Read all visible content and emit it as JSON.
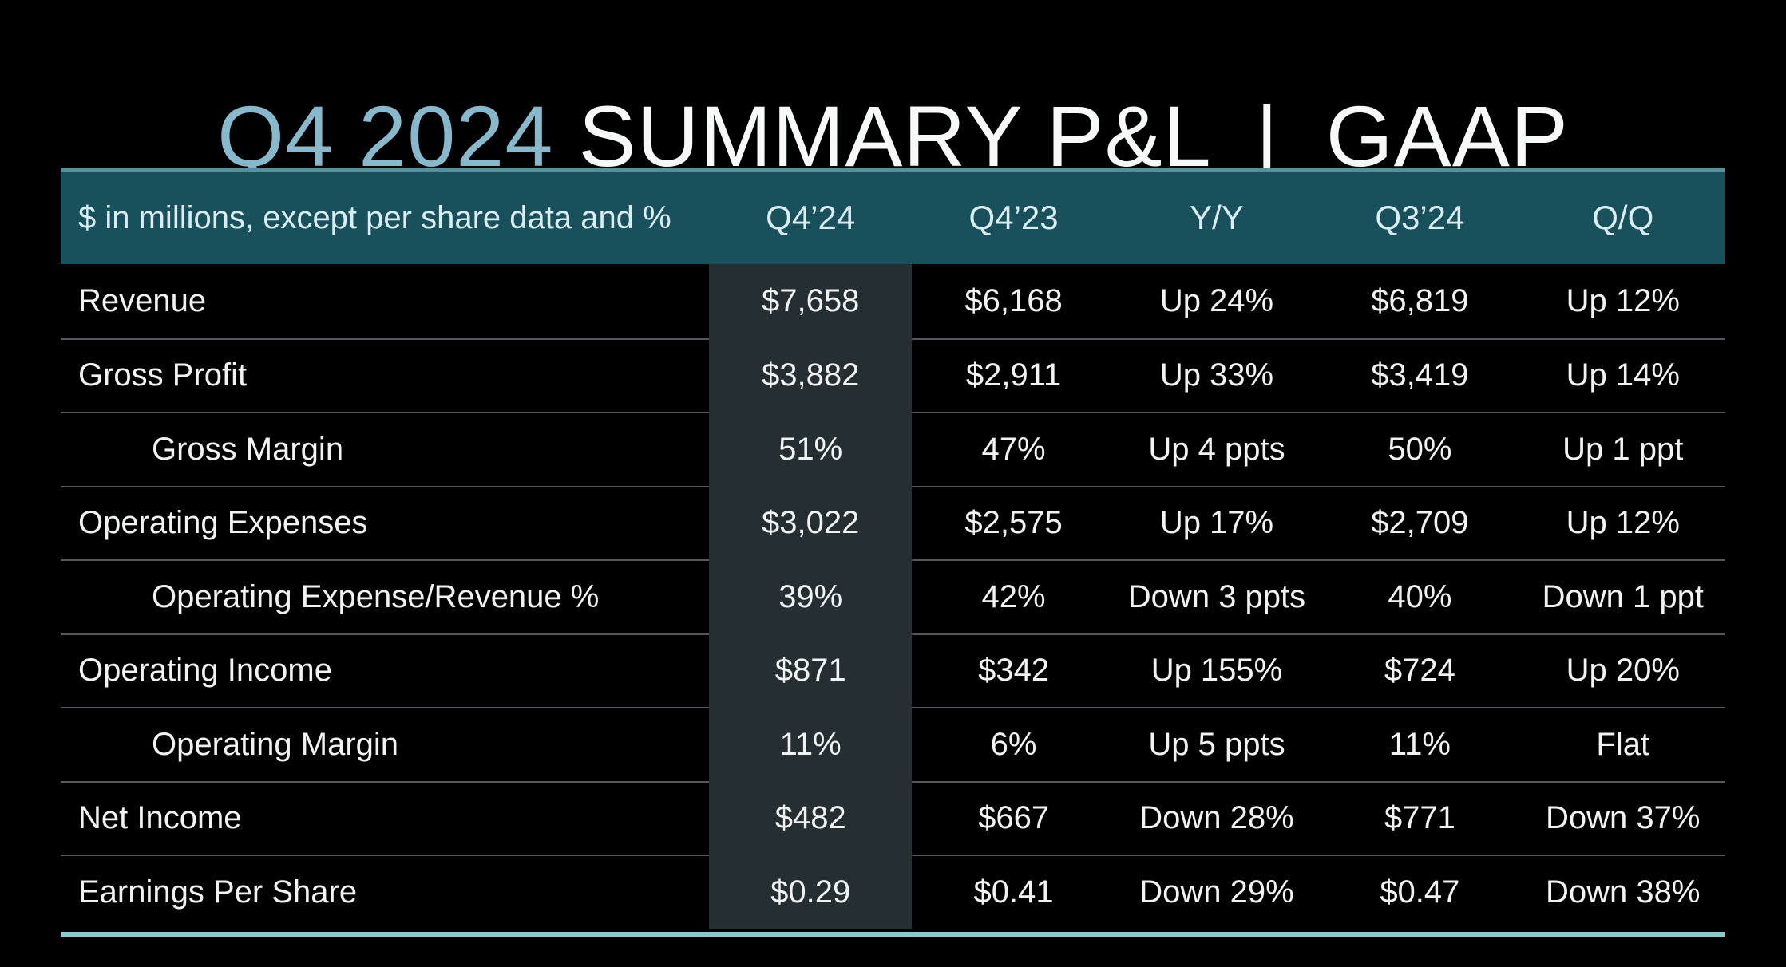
{
  "title": {
    "accent": "Q4 2024",
    "main": "SUMMARY P&L",
    "separator": "|",
    "suffix": "GAAP"
  },
  "table": {
    "caption": "$ in millions, except per share data and %",
    "columns": [
      "Q4’24",
      "Q4’23",
      "Y/Y",
      "Q3’24",
      "Q/Q"
    ],
    "highlighted_column": "Q4’24",
    "rows": [
      {
        "label": "Revenue",
        "indent": false,
        "values": [
          "$7,658",
          "$6,168",
          "Up 24%",
          "$6,819",
          "Up 12%"
        ]
      },
      {
        "label": "Gross Profit",
        "indent": false,
        "values": [
          "$3,882",
          "$2,911",
          "Up 33%",
          "$3,419",
          "Up 14%"
        ]
      },
      {
        "label": "Gross Margin",
        "indent": true,
        "values": [
          "51%",
          "47%",
          "Up 4 ppts",
          "50%",
          "Up 1 ppt"
        ]
      },
      {
        "label": "Operating Expenses",
        "indent": false,
        "values": [
          "$3,022",
          "$2,575",
          "Up 17%",
          "$2,709",
          "Up 12%"
        ]
      },
      {
        "label": "Operating Expense/Revenue %",
        "indent": true,
        "values": [
          "39%",
          "42%",
          "Down 3 ppts",
          "40%",
          "Down 1 ppt"
        ]
      },
      {
        "label": "Operating Income",
        "indent": false,
        "values": [
          "$871",
          "$342",
          "Up 155%",
          "$724",
          "Up 20%"
        ]
      },
      {
        "label": "Operating Margin",
        "indent": true,
        "values": [
          "11%",
          "6%",
          "Up 5 ppts",
          "11%",
          "Flat"
        ]
      },
      {
        "label": "Net Income",
        "indent": false,
        "values": [
          "$482",
          "$667",
          "Down 28%",
          "$771",
          "Down 37%"
        ]
      },
      {
        "label": "Earnings Per Share",
        "indent": false,
        "values": [
          "$0.29",
          "$0.41",
          "Down 29%",
          "$0.47",
          "Down 38%"
        ]
      }
    ]
  },
  "colors": {
    "background": "#000000",
    "accent": "#86b9cb",
    "title_white": "#f7f8f8",
    "header_bg": "#18505c",
    "header_border": "#568f9e",
    "header_text": "#d9edf2",
    "highlight_bg": "#252e32",
    "text": "#f1f2f2",
    "separator": "#54585a",
    "bottom_border": "#8cc9cf"
  }
}
